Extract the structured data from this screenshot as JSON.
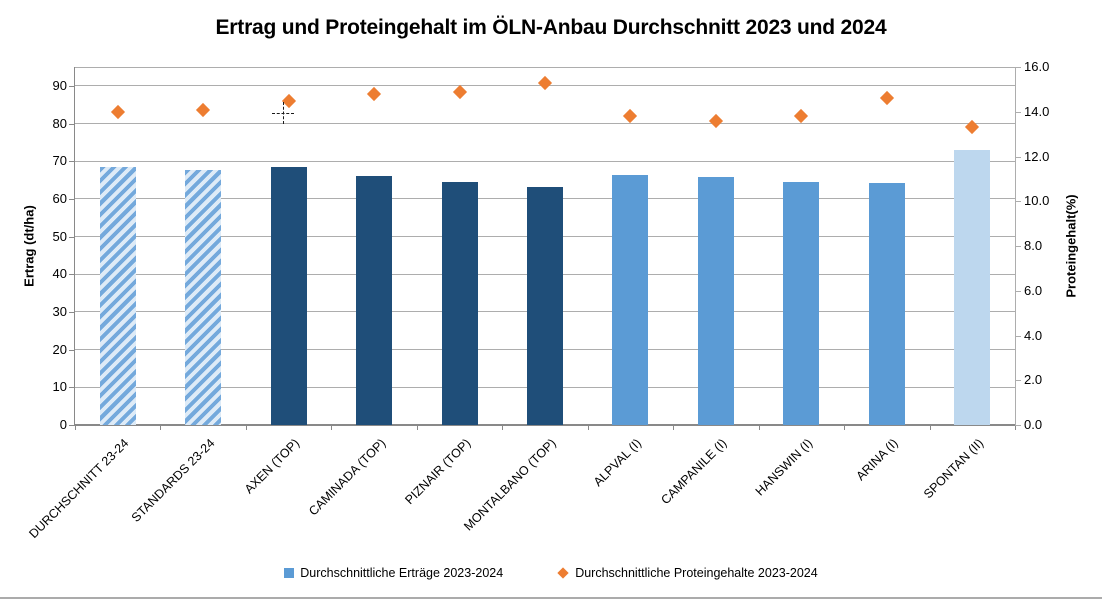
{
  "title": "Ertrag und Proteingehalt im ÖLN-Anbau Durchschnitt 2023 und 2024",
  "chart_data": {
    "type": "bar",
    "title": "Ertrag und Proteingehalt im ÖLN-Anbau Durchschnitt 2023 und 2024",
    "categories": [
      "DURCHSCHNITT 23-24",
      "STANDARDS 23-24",
      "AXEN (TOP)",
      "CAMINADA (TOP)",
      "PIZNAIR (TOP)",
      "MONTALBANO (TOP)",
      "ALPVAL (I)",
      "CAMPANILE (I)",
      "HANSWIN (I)",
      "ARINA (I)",
      "SPONTAN (II)"
    ],
    "series": [
      {
        "name": "Durchschnittliche Erträge 2023-2024",
        "type": "bar",
        "axis": "left",
        "values": [
          68.4,
          67.6,
          68.4,
          66.2,
          64.5,
          63.1,
          66.4,
          65.7,
          64.6,
          64.1,
          73.1
        ],
        "bar_styles": [
          "hatched",
          "hatched",
          "dark",
          "dark",
          "dark",
          "dark",
          "medium",
          "medium",
          "medium",
          "medium",
          "light"
        ]
      },
      {
        "name": "Durchschnittliche Proteingehalte 2023-2024",
        "type": "scatter",
        "axis": "right",
        "marker": "diamond",
        "values": [
          14.0,
          14.1,
          14.5,
          14.8,
          14.9,
          15.3,
          13.8,
          13.6,
          13.8,
          14.6,
          13.3
        ]
      }
    ],
    "left_axis": {
      "label": "Ertrag  (dt/ha)",
      "min": 0,
      "max": 95,
      "tick_step": 10,
      "ticks": [
        "0",
        "10",
        "20",
        "30",
        "40",
        "50",
        "60",
        "70",
        "80",
        "90"
      ]
    },
    "right_axis": {
      "label": "Proteingehalt(%)",
      "min": 0,
      "max": 16,
      "tick_step": 2,
      "ticks": [
        "0.0",
        "2.0",
        "4.0",
        "6.0",
        "8.0",
        "10.0",
        "12.0",
        "14.0",
        "16.0"
      ]
    },
    "legend_position": "bottom",
    "grid": true
  },
  "legend": {
    "bars_label": "Durchschnittliche Erträge 2023-2024",
    "protein_label": "Durchschnittliche Proteingehalte 2023-2024"
  },
  "colors": {
    "bar_dark": "#1F4E79",
    "bar_medium": "#5B9BD5",
    "bar_light": "#BDD7EE",
    "hatch_stripe": "#74A9DC",
    "hatch_bg": "#DEEBF7",
    "marker_orange": "#ED7D31",
    "gridline": "#ADADAD",
    "axis_line": "#898989"
  }
}
